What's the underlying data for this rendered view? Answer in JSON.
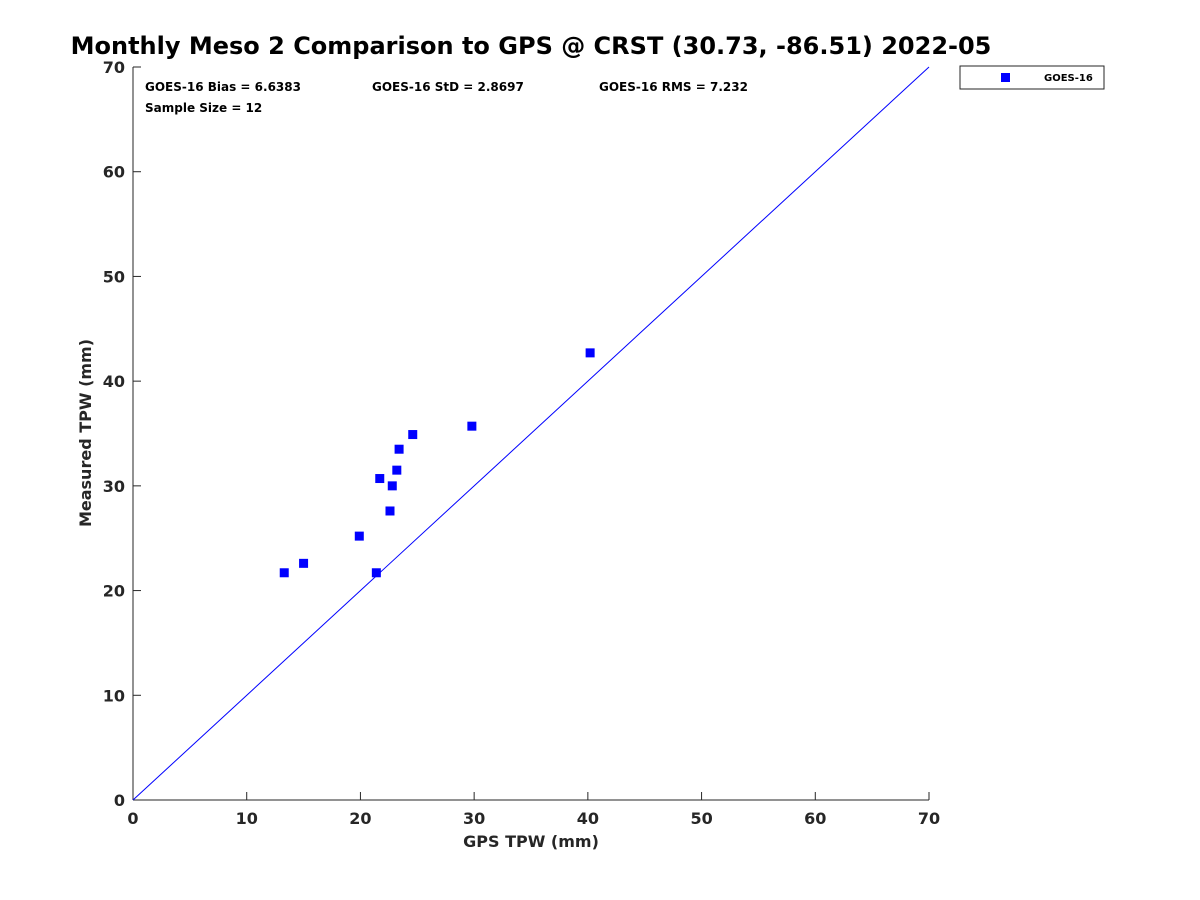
{
  "chart_data": {
    "type": "scatter",
    "title": "Monthly Meso 2 Comparison to GPS @ CRST (30.73, -86.51) 2022-05",
    "xlabel": "GPS TPW (mm)",
    "ylabel": "Measured TPW (mm)",
    "xlim": [
      0,
      70
    ],
    "ylim": [
      0,
      70
    ],
    "xticks": [
      "0",
      "10",
      "20",
      "30",
      "40",
      "50",
      "60",
      "70"
    ],
    "yticks": [
      "0",
      "10",
      "20",
      "30",
      "40",
      "50",
      "60",
      "70"
    ],
    "grid": false,
    "legend_position": "outside top-right",
    "reference_line": {
      "x": [
        0,
        70
      ],
      "y": [
        0,
        70
      ],
      "color": "#0000ff"
    },
    "series": [
      {
        "name": "GOES-16",
        "color": "#0000ff",
        "marker": "square",
        "points": [
          {
            "x": 13.3,
            "y": 21.7
          },
          {
            "x": 15.0,
            "y": 22.6
          },
          {
            "x": 19.9,
            "y": 25.2
          },
          {
            "x": 21.4,
            "y": 21.7
          },
          {
            "x": 21.7,
            "y": 30.7
          },
          {
            "x": 22.6,
            "y": 27.6
          },
          {
            "x": 22.8,
            "y": 30.0
          },
          {
            "x": 23.2,
            "y": 31.5
          },
          {
            "x": 23.4,
            "y": 33.5
          },
          {
            "x": 24.6,
            "y": 34.9
          },
          {
            "x": 29.8,
            "y": 35.7
          },
          {
            "x": 40.2,
            "y": 42.7
          }
        ]
      }
    ],
    "annotations": [
      "GOES-16 Bias = 6.6383",
      "GOES-16 StD = 2.8697",
      "GOES-16 RMS = 7.232",
      "Sample Size = 12"
    ]
  }
}
